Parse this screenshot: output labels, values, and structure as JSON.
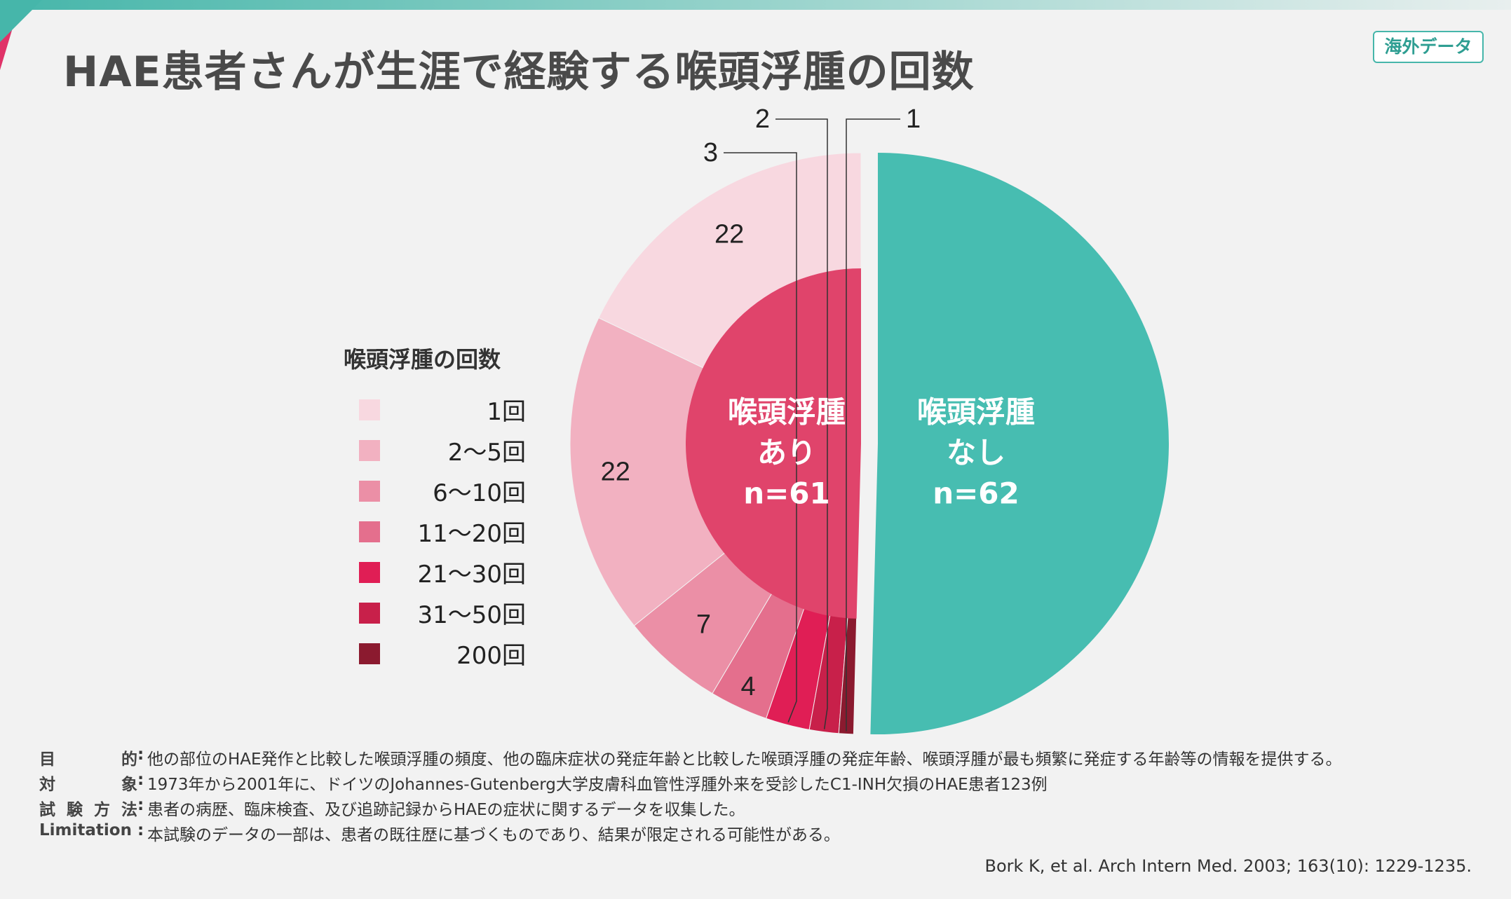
{
  "title": "HAE患者さんが生涯で経験する喉頭浮腫の回数",
  "badge": "海外データ",
  "chart_data": {
    "type": "pie",
    "outer_ring": {
      "slices": [
        {
          "name": "喉頭浮腫なし",
          "value": 62,
          "color": "#47bdb1"
        },
        {
          "name": "1回",
          "value": 22,
          "color": "#f8d8e0"
        },
        {
          "name": "2〜5回",
          "value": 22,
          "color": "#f2b1c1"
        },
        {
          "name": "6〜10回",
          "value": 7,
          "color": "#eb8fa6"
        },
        {
          "name": "11〜20回",
          "value": 4,
          "color": "#e46f8d"
        },
        {
          "name": "21〜30回",
          "value": 3,
          "color": "#e01e55"
        },
        {
          "name": "31〜50回",
          "value": 2,
          "color": "#c8204a"
        },
        {
          "name": "200回",
          "value": 1,
          "color": "#8b1a2f"
        }
      ]
    },
    "inner_circle": {
      "name": "喉頭浮腫あり",
      "value": 61,
      "color": "#e0446b"
    },
    "data_labels": [
      "22",
      "22",
      "7",
      "4",
      "3",
      "2",
      "1"
    ],
    "center_labels": {
      "yes": [
        "喉頭浮腫",
        "あり",
        "n=61"
      ],
      "no": [
        "喉頭浮腫",
        "なし",
        "n=62"
      ]
    }
  },
  "legend": {
    "title": "喉頭浮腫の回数",
    "items": [
      {
        "label": "1回",
        "color": "#f8d8e0"
      },
      {
        "label": "2〜5回",
        "color": "#f2b1c1"
      },
      {
        "label": "6〜10回",
        "color": "#eb8fa6"
      },
      {
        "label": "11〜20回",
        "color": "#e46f8d"
      },
      {
        "label": "21〜30回",
        "color": "#e01e55"
      },
      {
        "label": "31〜50回",
        "color": "#c8204a"
      },
      {
        "label": "200回",
        "color": "#8b1a2f"
      }
    ]
  },
  "notes": [
    {
      "label": "目的",
      "text": "他の部位のHAE発作と比較した喉頭浮腫の頻度、他の臨床症状の発症年齢と比較した喉頭浮腫の発症年齢、喉頭浮腫が最も頻繁に発症する年齢等の情報を提供する。"
    },
    {
      "label": "対象",
      "text": "1973年から2001年に、ドイツのJohannes-Gutenberg大学皮膚科血管性浮腫外来を受診したC1-INH欠損のHAE患者123例"
    },
    {
      "label": "試験方法",
      "text": "患者の病歴、臨床検査、及び追跡記録からHAEの症状に関するデータを収集した。"
    },
    {
      "label": "Limitation",
      "text": "本試験のデータの一部は、患者の既往歴に基づくものであり、結果が限定される可能性がある。"
    }
  ],
  "note_colon": ":",
  "citation": "Bork K, et al. Arch Intern Med. 2003; 163(10): 1229-1235."
}
